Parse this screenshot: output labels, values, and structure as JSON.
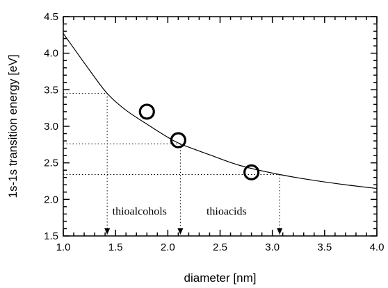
{
  "chart_data": {
    "type": "scatter",
    "xlabel": "diameter [nm]",
    "ylabel": "1s-1s transition energy [eV]",
    "xlim": [
      1.0,
      4.0
    ],
    "ylim": [
      1.5,
      4.5
    ],
    "xticks": [
      "1.0",
      "1.5",
      "2.0",
      "2.5",
      "3.0",
      "3.5",
      "4.0"
    ],
    "yticks": [
      "1.5",
      "2.0",
      "2.5",
      "3.0",
      "3.5",
      "4.0",
      "4.5"
    ],
    "grid": false,
    "points": [
      {
        "x": 1.8,
        "y": 3.2
      },
      {
        "x": 2.1,
        "y": 2.81
      },
      {
        "x": 2.8,
        "y": 2.37
      }
    ],
    "fit_curve": [
      {
        "x": 1.0,
        "y": 4.27
      },
      {
        "x": 1.25,
        "y": 3.77
      },
      {
        "x": 1.42,
        "y": 3.45
      },
      {
        "x": 1.6,
        "y": 3.22
      },
      {
        "x": 1.8,
        "y": 3.03
      },
      {
        "x": 2.0,
        "y": 2.85
      },
      {
        "x": 2.12,
        "y": 2.76
      },
      {
        "x": 2.4,
        "y": 2.61
      },
      {
        "x": 2.7,
        "y": 2.46
      },
      {
        "x": 3.07,
        "y": 2.34
      },
      {
        "x": 3.4,
        "y": 2.26
      },
      {
        "x": 3.7,
        "y": 2.2
      },
      {
        "x": 4.0,
        "y": 2.15
      }
    ],
    "guide_lines": [
      {
        "x": 1.42,
        "y": 3.45
      },
      {
        "x": 2.12,
        "y": 2.76
      },
      {
        "x": 3.07,
        "y": 2.34
      }
    ],
    "annotations": [
      {
        "text": "thioalcohols",
        "x": 1.47,
        "y": 1.79
      },
      {
        "text": "thioacids",
        "x": 2.37,
        "y": 1.79
      }
    ]
  }
}
